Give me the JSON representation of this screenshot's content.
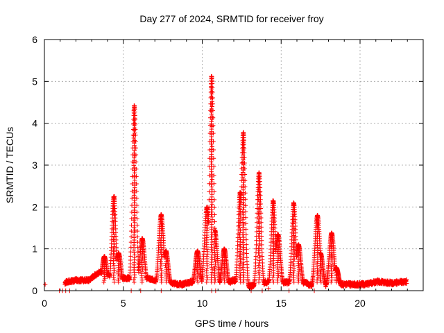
{
  "chart_data": {
    "type": "scatter",
    "title": "Day 277 of 2024, SRMTID for receiver froy",
    "xlabel": "GPS time / hours",
    "ylabel": "SRMTID / TECUs",
    "xlim": [
      0,
      24
    ],
    "ylim": [
      0,
      6
    ],
    "xticks": [
      0,
      5,
      10,
      15,
      20
    ],
    "yticks": [
      0,
      1,
      2,
      3,
      4,
      5,
      6
    ],
    "grid": true,
    "marker": "+",
    "color": "#ff0000",
    "background": [
      [
        1.3,
        0.2
      ],
      [
        2.0,
        0.25
      ],
      [
        2.8,
        0.25
      ],
      [
        3.5,
        0.45
      ],
      [
        4.6,
        0.3
      ],
      [
        5.3,
        0.3
      ],
      [
        6.6,
        0.3
      ],
      [
        7.3,
        0.2
      ],
      [
        8.7,
        0.15
      ],
      [
        9.7,
        0.25
      ],
      [
        10.3,
        0.25
      ],
      [
        11.3,
        0.15
      ],
      [
        12.0,
        0.25
      ],
      [
        13.0,
        0.1
      ],
      [
        14.0,
        0.2
      ],
      [
        16.5,
        0.2
      ],
      [
        17.0,
        0.1
      ],
      [
        18.8,
        0.15
      ],
      [
        19.6,
        0.15
      ],
      [
        20.3,
        0.15
      ],
      [
        21.2,
        0.22
      ],
      [
        22.0,
        0.18
      ],
      [
        22.9,
        0.22
      ]
    ],
    "peaks": [
      {
        "x": 3.8,
        "y": 0.82
      },
      {
        "x": 4.4,
        "y": 2.25
      },
      {
        "x": 4.7,
        "y": 0.9
      },
      {
        "x": 5.7,
        "y": 4.42
      },
      {
        "x": 6.2,
        "y": 1.25
      },
      {
        "x": 7.4,
        "y": 1.82
      },
      {
        "x": 7.7,
        "y": 0.95
      },
      {
        "x": 9.7,
        "y": 0.95
      },
      {
        "x": 10.3,
        "y": 2.0
      },
      {
        "x": 10.6,
        "y": 5.12
      },
      {
        "x": 10.8,
        "y": 1.45
      },
      {
        "x": 11.4,
        "y": 1.0
      },
      {
        "x": 12.4,
        "y": 2.35
      },
      {
        "x": 12.6,
        "y": 3.78
      },
      {
        "x": 13.6,
        "y": 2.82
      },
      {
        "x": 14.5,
        "y": 2.15
      },
      {
        "x": 14.8,
        "y": 1.35
      },
      {
        "x": 15.8,
        "y": 2.1
      },
      {
        "x": 16.1,
        "y": 1.1
      },
      {
        "x": 17.3,
        "y": 1.8
      },
      {
        "x": 17.5,
        "y": 0.9
      },
      {
        "x": 18.2,
        "y": 1.38
      },
      {
        "x": 18.5,
        "y": 0.55
      }
    ],
    "outliers": [
      [
        0.05,
        0.15
      ],
      [
        0.95,
        0.0
      ],
      [
        1.15,
        0.0
      ],
      [
        1.35,
        0.0
      ],
      [
        1.6,
        0.0
      ],
      [
        5.5,
        0.0
      ],
      [
        6.1,
        0.0
      ],
      [
        7.4,
        0.0
      ],
      [
        10.6,
        0.0
      ],
      [
        10.85,
        0.0
      ],
      [
        13.1,
        0.0
      ],
      [
        13.8,
        0.0
      ],
      [
        14.2,
        0.05
      ],
      [
        15.5,
        0.0
      ],
      [
        17.1,
        0.0
      ]
    ]
  }
}
